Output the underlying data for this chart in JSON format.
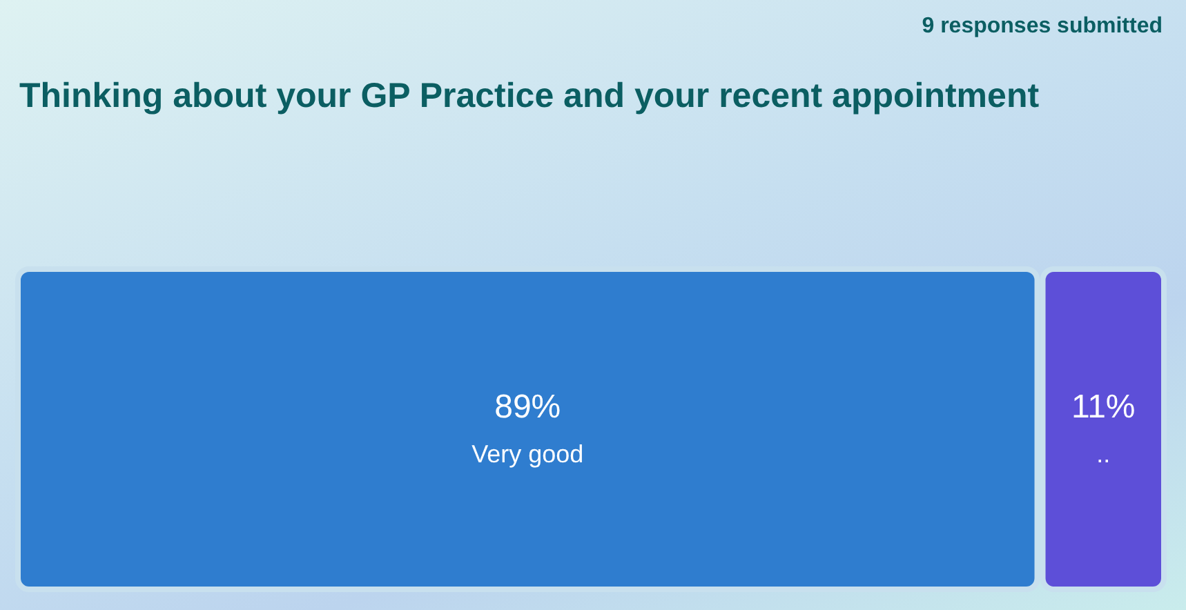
{
  "chart_data": {
    "type": "bar",
    "orientation": "horizontal",
    "stacked": true,
    "title": "Thinking about your GP Practice and your recent appointment",
    "subtitle": "9 responses submitted",
    "categories": [
      null
    ],
    "series": [
      {
        "name": "Very good",
        "color": "#2f7dcf",
        "values": [
          89
        ],
        "value_labels": [
          "89%"
        ]
      },
      {
        "name": "..",
        "color": "#5d4fd8",
        "values": [
          11
        ],
        "value_labels": [
          "11%"
        ]
      }
    ]
  }
}
